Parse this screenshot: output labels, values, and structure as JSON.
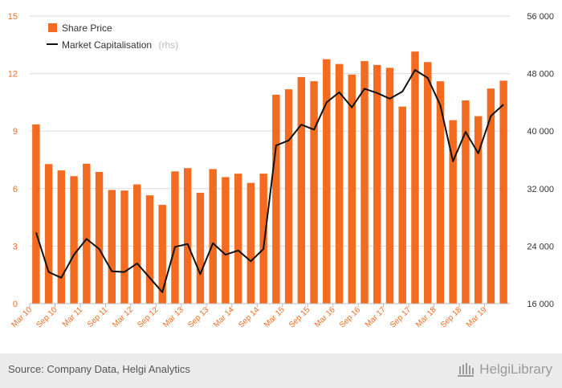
{
  "chart_data": {
    "type": "bar",
    "categories": [
      "Mar 10",
      "Jun 10",
      "Sep 10",
      "Dec 10",
      "Mar 11",
      "Jun 11",
      "Sep 11",
      "Dec 11",
      "Mar 12",
      "Jun 12",
      "Sep 12",
      "Dec 12",
      "Mar 13",
      "Jun 13",
      "Sep 13",
      "Dec 13",
      "Mar 14",
      "Jun 14",
      "Sep 14",
      "Dec 14",
      "Mar 15",
      "Jun 15",
      "Sep 15",
      "Dec 15",
      "Mar 16",
      "Jun 16",
      "Sep 16",
      "Dec 16",
      "Mar 17",
      "Jun 17",
      "Sep 17",
      "Dec 17",
      "Mar 18",
      "Jun 18",
      "Sep 18",
      "Dec 18",
      "Mar 19",
      "Jun 19"
    ],
    "x_tick_labels": [
      "Mar 10",
      "Sep 10",
      "Mar 11",
      "Sep 11",
      "Mar 12",
      "Sep 12",
      "Mar 13",
      "Sep 13",
      "Mar 14",
      "Sep 14",
      "Mar 15",
      "Sep 15",
      "Mar 16",
      "Sep 16",
      "Mar 17",
      "Sep 17",
      "Mar 18",
      "Sep 18",
      "Mar 19"
    ],
    "series": [
      {
        "name": "Share Price",
        "type": "bar",
        "axis": "left",
        "color": "#f26b21",
        "values": [
          9.35,
          7.28,
          6.95,
          6.65,
          7.3,
          6.87,
          5.93,
          5.9,
          6.22,
          5.65,
          5.15,
          6.9,
          7.07,
          5.78,
          7.02,
          6.6,
          6.78,
          6.3,
          6.78,
          10.9,
          11.18,
          11.82,
          11.6,
          12.75,
          12.5,
          11.95,
          12.65,
          12.45,
          12.3,
          10.28,
          13.15,
          12.6,
          11.6,
          9.57,
          10.6,
          9.78,
          11.22,
          11.63
        ]
      },
      {
        "name": "Market Capitalisation",
        "name_suffix": "(rhs)",
        "type": "line",
        "axis": "right",
        "color": "#111111",
        "values": [
          25900,
          20400,
          19600,
          22800,
          25000,
          23600,
          20500,
          20400,
          21600,
          19600,
          17600,
          23900,
          24300,
          20100,
          24400,
          22800,
          23400,
          21900,
          23600,
          38000,
          38700,
          40900,
          40200,
          44000,
          45400,
          43300,
          45900,
          45300,
          44500,
          45500,
          48500,
          47400,
          43600,
          35800,
          39900,
          36900,
          42100,
          43700
        ]
      }
    ],
    "y_left": {
      "min": 0,
      "max": 15,
      "ticks": [
        "0",
        "3",
        "6",
        "9",
        "12",
        "15"
      ]
    },
    "y_right": {
      "min": 16000,
      "max": 56000,
      "ticks": [
        "16 000",
        "24 000",
        "32 000",
        "40 000",
        "48 000",
        "56 000"
      ]
    },
    "grid": "horizontal",
    "legend_position": "top-left"
  },
  "legend": {
    "share_price": "Share Price",
    "market_cap": "Market Capitalisation",
    "market_cap_suffix": "(rhs)"
  },
  "footer": {
    "source": "Source: Company Data, Helgi Analytics",
    "brand": "HelgiLibrary"
  },
  "colors": {
    "bar": "#f26b21",
    "line": "#111111",
    "grid": "#dcdcdc",
    "footer_bg": "#ebebeb"
  }
}
